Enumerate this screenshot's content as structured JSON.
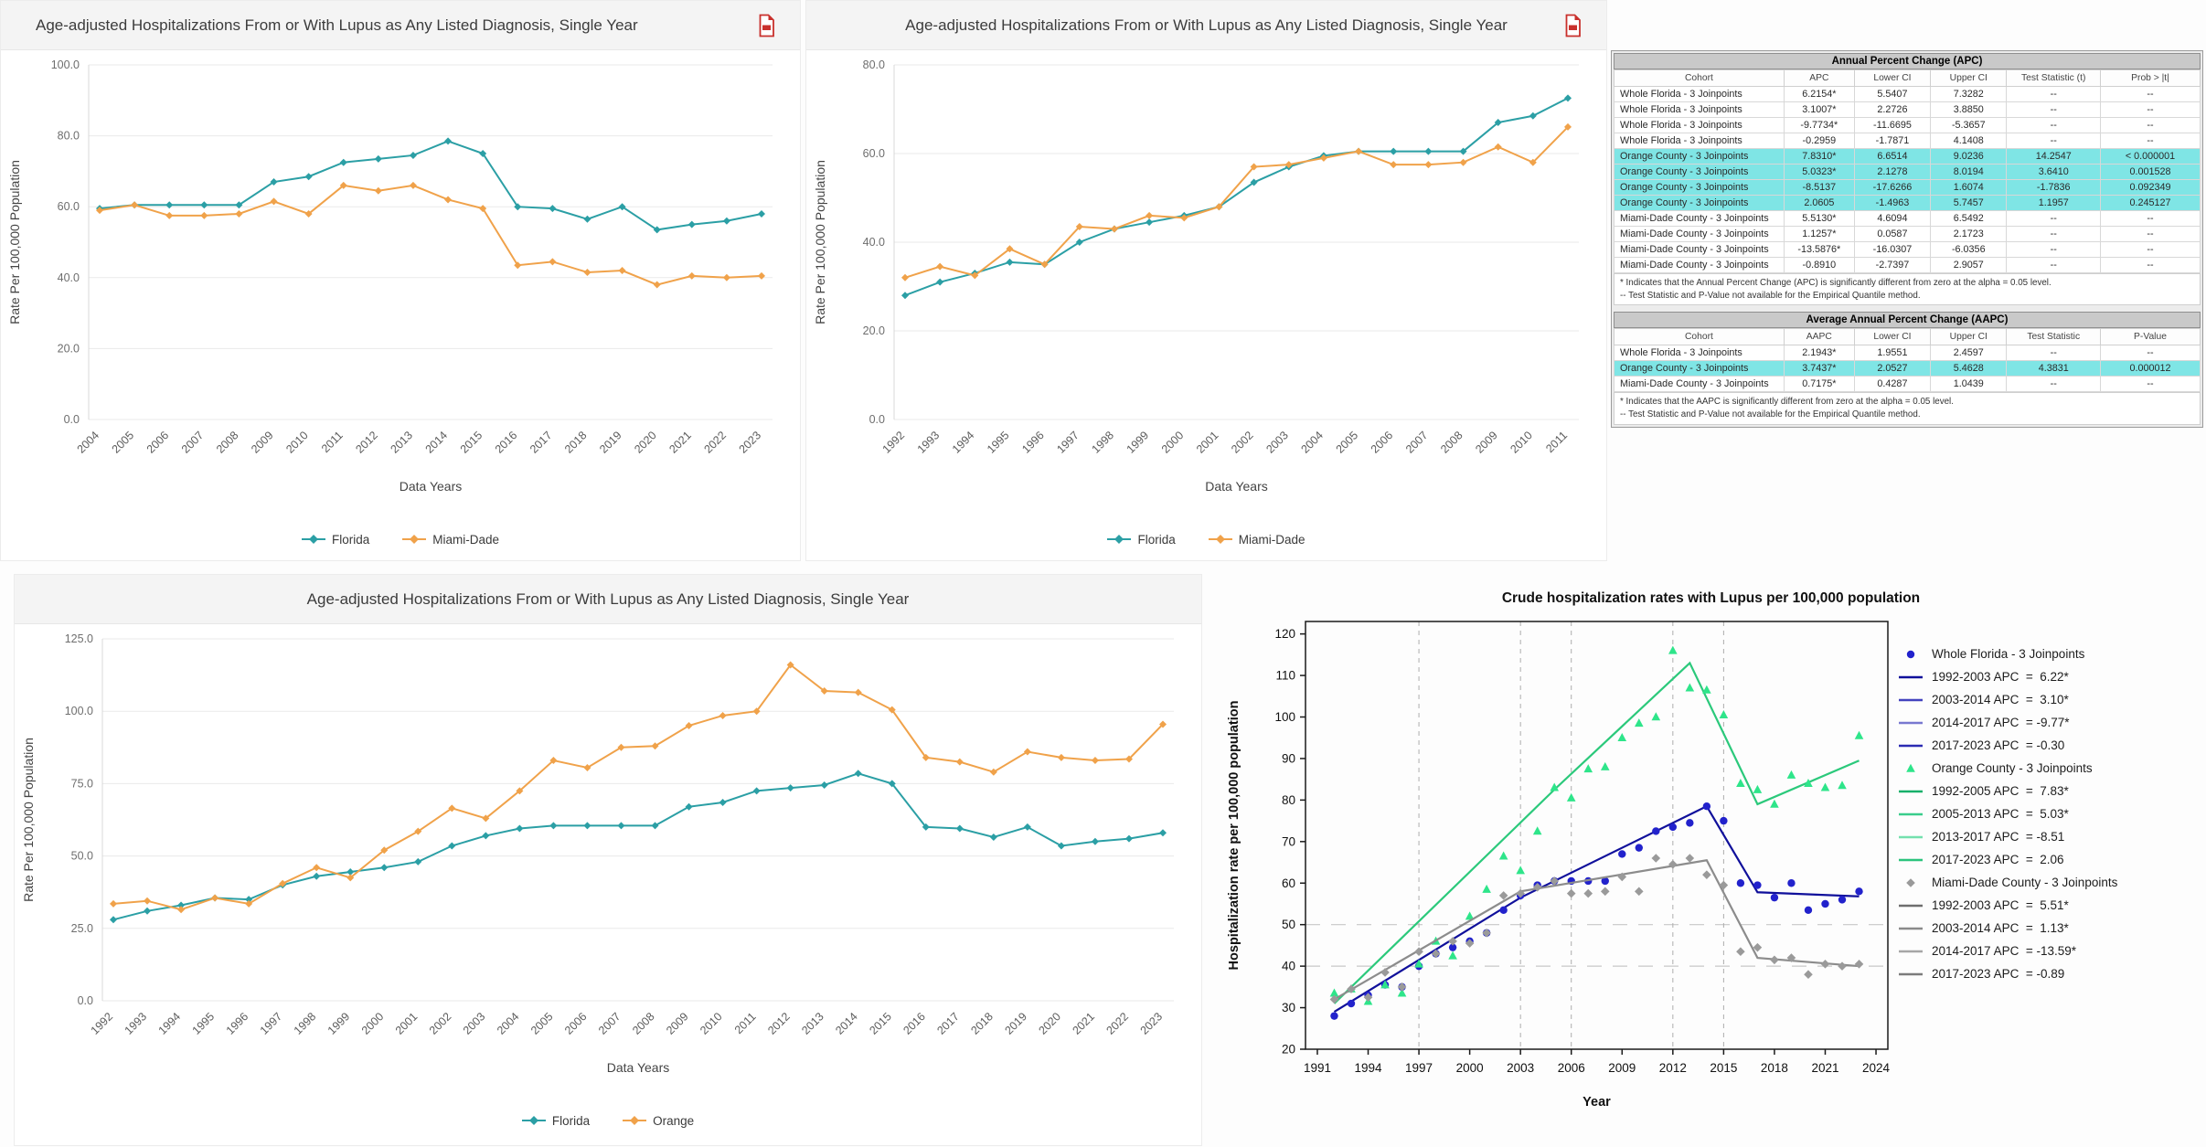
{
  "colors": {
    "teal": "#2B9FA5",
    "orange": "#F0A24A",
    "blue_marker": "#2222CC",
    "blue_line": "#10109B",
    "green_marker": "#2EE58A",
    "green_line": "#2BC97B",
    "gray_marker": "#9A9A9A",
    "gray_line": "#8C8C8C",
    "highlight": "#7FE5E5",
    "pdf_red": "#C9302C"
  },
  "icons": {
    "pdf_export": "file-pdf-icon"
  },
  "chart_data": [
    {
      "id": "age-adjusted-2004-2023-florida-miamidade",
      "type": "line",
      "title": "Age-adjusted Hospitalizations From or With Lupus as Any Listed Diagnosis, Single Year",
      "xlabel": "Data Years",
      "ylabel": "Rate Per 100,000 Population",
      "ylim": [
        0,
        100
      ],
      "yticks": [
        0,
        20,
        40,
        60,
        80,
        100
      ],
      "grid": "horizontal",
      "legend_position": "bottom",
      "categories": [
        "2004",
        "2005",
        "2006",
        "2007",
        "2008",
        "2009",
        "2010",
        "2011",
        "2012",
        "2013",
        "2014",
        "2015",
        "2016",
        "2017",
        "2018",
        "2019",
        "2020",
        "2021",
        "2022",
        "2023"
      ],
      "series": [
        {
          "name": "Florida",
          "color": "#2B9FA5",
          "values": [
            59.5,
            60.5,
            60.5,
            60.5,
            60.5,
            67,
            68.5,
            72.5,
            73.5,
            74.5,
            78.5,
            75,
            60,
            59.5,
            56.5,
            60,
            53.5,
            55,
            56,
            58
          ]
        },
        {
          "name": "Miami-Dade",
          "color": "#F0A24A",
          "values": [
            59,
            60.5,
            57.5,
            57.5,
            58,
            61.5,
            58,
            66,
            64.5,
            66,
            62,
            59.5,
            43.5,
            44.5,
            41.5,
            42,
            38,
            40.5,
            40,
            40.5
          ]
        }
      ]
    },
    {
      "id": "age-adjusted-1992-2011-florida-miamidade",
      "type": "line",
      "title": "Age-adjusted Hospitalizations From or With Lupus as Any Listed Diagnosis, Single Year",
      "xlabel": "Data Years",
      "ylabel": "Rate Per 100,000 Population",
      "ylim": [
        0,
        80
      ],
      "yticks": [
        0,
        20,
        40,
        60,
        80
      ],
      "grid": "horizontal",
      "legend_position": "bottom",
      "categories": [
        "1992",
        "1993",
        "1994",
        "1995",
        "1996",
        "1997",
        "1998",
        "1999",
        "2000",
        "2001",
        "2002",
        "2003",
        "2004",
        "2005",
        "2006",
        "2007",
        "2008",
        "2009",
        "2010",
        "2011"
      ],
      "series": [
        {
          "name": "Florida",
          "color": "#2B9FA5",
          "values": [
            28,
            31,
            33,
            35.5,
            35,
            40,
            43,
            44.5,
            46,
            48,
            53.5,
            57,
            59.5,
            60.5,
            60.5,
            60.5,
            60.5,
            67,
            68.5,
            72.5
          ]
        },
        {
          "name": "Miami-Dade",
          "color": "#F0A24A",
          "values": [
            32,
            34.5,
            32.5,
            38.5,
            35,
            43.5,
            43,
            46,
            45.5,
            48,
            57,
            57.5,
            59,
            60.5,
            57.5,
            57.5,
            58,
            61.5,
            58,
            66
          ]
        }
      ]
    },
    {
      "id": "age-adjusted-1992-2023-florida-orange",
      "type": "line",
      "title": "Age-adjusted Hospitalizations From or With Lupus as Any Listed Diagnosis, Single Year",
      "xlabel": "Data Years",
      "ylabel": "Rate Per 100,000 Population",
      "ylim": [
        0,
        125
      ],
      "yticks": [
        0,
        25,
        50,
        75,
        100,
        125
      ],
      "grid": "horizontal",
      "legend_position": "bottom",
      "categories": [
        "1992",
        "1993",
        "1994",
        "1995",
        "1996",
        "1997",
        "1998",
        "1999",
        "2000",
        "2001",
        "2002",
        "2003",
        "2004",
        "2005",
        "2006",
        "2007",
        "2008",
        "2009",
        "2010",
        "2011",
        "2012",
        "2013",
        "2014",
        "2015",
        "2016",
        "2017",
        "2018",
        "2019",
        "2020",
        "2021",
        "2022",
        "2023"
      ],
      "series": [
        {
          "name": "Florida",
          "color": "#2B9FA5",
          "values": [
            28,
            31,
            33,
            35.5,
            35,
            40,
            43,
            44.5,
            46,
            48,
            53.5,
            57,
            59.5,
            60.5,
            60.5,
            60.5,
            60.5,
            67,
            68.5,
            72.5,
            73.5,
            74.5,
            78.5,
            75,
            60,
            59.5,
            56.5,
            60,
            53.5,
            55,
            56,
            58
          ]
        },
        {
          "name": "Orange",
          "color": "#F0A24A",
          "values": [
            33.5,
            34.5,
            31.5,
            35.5,
            33.5,
            40.5,
            46,
            42.5,
            52,
            58.5,
            66.5,
            63,
            72.5,
            83,
            80.5,
            87.5,
            88,
            95,
            98.5,
            100,
            116,
            107,
            106.5,
            100.5,
            84,
            82.5,
            79,
            86,
            84,
            83,
            83.5,
            95.5
          ]
        }
      ]
    },
    {
      "id": "joinpoint-crude-rates",
      "type": "scatter",
      "title": "Crude hospitalization rates with Lupus per 100,000 population",
      "xlabel": "Year",
      "ylabel": "Hospitalization rate per 100,000 population",
      "xlim": [
        1990.3,
        2024.7
      ],
      "ylim": [
        20,
        123
      ],
      "xticks": [
        1991,
        1994,
        1997,
        2000,
        2003,
        2006,
        2009,
        2012,
        2015,
        2018,
        2021,
        2024
      ],
      "yticks": [
        20,
        30,
        40,
        50,
        60,
        70,
        80,
        90,
        100,
        110,
        120
      ],
      "href_lines": [
        40,
        50
      ],
      "vref_lines": [
        1997,
        2003,
        2006,
        2012,
        2015
      ],
      "grid": "dashed-reference-lines",
      "legend_position": "right",
      "years": [
        1992,
        1993,
        1994,
        1995,
        1996,
        1997,
        1998,
        1999,
        2000,
        2001,
        2002,
        2003,
        2004,
        2005,
        2006,
        2007,
        2008,
        2009,
        2010,
        2011,
        2012,
        2013,
        2014,
        2015,
        2016,
        2017,
        2018,
        2019,
        2020,
        2021,
        2022,
        2023
      ],
      "cohorts": [
        {
          "name": "Whole Florida - 3 Joinpoints",
          "marker": "circle",
          "marker_color": "#2222CC",
          "line_color": "#10109B",
          "scatter": [
            28,
            31,
            33,
            35.5,
            35,
            40,
            43,
            44.5,
            46,
            48,
            53.5,
            57,
            59.5,
            60.5,
            60.5,
            60.5,
            60.5,
            67,
            68.5,
            72.5,
            73.5,
            74.5,
            78.5,
            75,
            60,
            59.5,
            56.5,
            60,
            53.5,
            55,
            56,
            58
          ],
          "fit": [
            [
              1992,
              29
            ],
            [
              2003,
              56.5
            ],
            [
              2014,
              78.5
            ],
            [
              2017,
              57.8
            ],
            [
              2023,
              56.8
            ]
          ]
        },
        {
          "name": "Orange County - 3 Joinpoints",
          "marker": "triangle",
          "marker_color": "#2EE58A",
          "line_color": "#2BC97B",
          "scatter": [
            33.5,
            34.5,
            31.5,
            35.5,
            33.5,
            40.5,
            46,
            42.5,
            52,
            58.5,
            66.5,
            63,
            72.5,
            83,
            80.5,
            87.5,
            88,
            95,
            98.5,
            100,
            116,
            107,
            106.5,
            100.5,
            84,
            82.5,
            79,
            86,
            84,
            83,
            83.5,
            95.5
          ],
          "fit": [
            [
              1992,
              31
            ],
            [
              2005,
              82.5
            ],
            [
              2013,
              113
            ],
            [
              2017,
              79
            ],
            [
              2023,
              89.5
            ]
          ]
        },
        {
          "name": "Miami-Dade County - 3 Joinpoints",
          "marker": "diamond",
          "marker_color": "#9A9A9A",
          "line_color": "#8C8C8C",
          "scatter": [
            32,
            34.5,
            32.5,
            38.5,
            35,
            43.5,
            43,
            46,
            45.5,
            48,
            57,
            57.5,
            59,
            60.5,
            57.5,
            57.5,
            58,
            61.5,
            58,
            66,
            64.5,
            66,
            62,
            59.5,
            43.5,
            44.5,
            41.5,
            42,
            38,
            40.5,
            40,
            40.5
          ],
          "fit": [
            [
              1992,
              32
            ],
            [
              2003,
              58
            ],
            [
              2014,
              65.5
            ],
            [
              2017,
              42
            ],
            [
              2023,
              40
            ]
          ]
        }
      ],
      "legend": [
        {
          "shape": "circle",
          "color": "#2222CC",
          "label": "Whole Florida - 3 Joinpoints"
        },
        {
          "shape": "line",
          "color": "#10109B",
          "label": "1992-2003 APC  =  6.22*"
        },
        {
          "shape": "line",
          "color": "#4343BE",
          "label": "2003-2014 APC  =  3.10*"
        },
        {
          "shape": "line",
          "color": "#7878D0",
          "label": "2014-2017 APC  = -9.77*"
        },
        {
          "shape": "line",
          "color": "#2B2BB2",
          "label": "2017-2023 APC  = -0.30"
        },
        {
          "shape": "triangle",
          "color": "#2EE58A",
          "label": "Orange County - 3 Joinpoints"
        },
        {
          "shape": "line",
          "color": "#17B06A",
          "label": "1992-2005 APC  =  7.83*"
        },
        {
          "shape": "line",
          "color": "#3ACD8B",
          "label": "2005-2013 APC  =  5.03*"
        },
        {
          "shape": "line",
          "color": "#74E0AE",
          "label": "2013-2017 APC  = -8.51"
        },
        {
          "shape": "line",
          "color": "#2BC47D",
          "label": "2017-2023 APC  =  2.06"
        },
        {
          "shape": "diamond",
          "color": "#9A9A9A",
          "label": "Miami-Dade County - 3 Joinpoints"
        },
        {
          "shape": "line",
          "color": "#6E6E6E",
          "label": "1992-2003 APC  =  5.51*"
        },
        {
          "shape": "line",
          "color": "#8A8A8A",
          "label": "2003-2014 APC  =  1.13*"
        },
        {
          "shape": "line",
          "color": "#A6A6A6",
          "label": "2014-2017 APC  = -13.59*"
        },
        {
          "shape": "line",
          "color": "#7C7C7C",
          "label": "2017-2023 APC  = -0.89"
        }
      ]
    }
  ],
  "apc_table": {
    "title": "Annual Percent Change (APC)",
    "columns": [
      "Cohort",
      "APC",
      "Lower CI",
      "Upper CI",
      "Test Statistic (t)",
      "Prob > |t|"
    ],
    "rows": [
      {
        "cells": [
          "Whole Florida - 3 Joinpoints",
          "6.2154*",
          "5.5407",
          "7.3282",
          "--",
          "--"
        ],
        "highlight": false
      },
      {
        "cells": [
          "Whole Florida - 3 Joinpoints",
          "3.1007*",
          "2.2726",
          "3.8850",
          "--",
          "--"
        ],
        "highlight": false
      },
      {
        "cells": [
          "Whole Florida - 3 Joinpoints",
          "-9.7734*",
          "-11.6695",
          "-5.3657",
          "--",
          "--"
        ],
        "highlight": false
      },
      {
        "cells": [
          "Whole Florida - 3 Joinpoints",
          "-0.2959",
          "-1.7871",
          "4.1408",
          "--",
          "--"
        ],
        "highlight": false
      },
      {
        "cells": [
          "Orange County - 3 Joinpoints",
          "7.8310*",
          "6.6514",
          "9.0236",
          "14.2547",
          "< 0.000001"
        ],
        "highlight": true
      },
      {
        "cells": [
          "Orange County - 3 Joinpoints",
          "5.0323*",
          "2.1278",
          "8.0194",
          "3.6410",
          "0.001528"
        ],
        "highlight": true
      },
      {
        "cells": [
          "Orange County - 3 Joinpoints",
          "-8.5137",
          "-17.6266",
          "1.6074",
          "-1.7836",
          "0.092349"
        ],
        "highlight": true
      },
      {
        "cells": [
          "Orange County - 3 Joinpoints",
          "2.0605",
          "-1.4963",
          "5.7457",
          "1.1957",
          "0.245127"
        ],
        "highlight": true
      },
      {
        "cells": [
          "Miami-Dade County - 3 Joinpoints",
          "5.5130*",
          "4.6094",
          "6.5492",
          "--",
          "--"
        ],
        "highlight": false
      },
      {
        "cells": [
          "Miami-Dade County - 3 Joinpoints",
          "1.1257*",
          "0.0587",
          "2.1723",
          "--",
          "--"
        ],
        "highlight": false
      },
      {
        "cells": [
          "Miami-Dade County - 3 Joinpoints",
          "-13.5876*",
          "-16.0307",
          "-6.0356",
          "--",
          "--"
        ],
        "highlight": false
      },
      {
        "cells": [
          "Miami-Dade County - 3 Joinpoints",
          "-0.8910",
          "-2.7397",
          "2.9057",
          "--",
          "--"
        ],
        "highlight": false
      }
    ],
    "footnotes": [
      "* Indicates that the Annual Percent Change (APC) is significantly different from zero at the alpha = 0.05 level.",
      "-- Test Statistic and P-Value not available for the Empirical Quantile method."
    ]
  },
  "aapc_table": {
    "title": "Average Annual Percent Change (AAPC)",
    "columns": [
      "Cohort",
      "AAPC",
      "Lower CI",
      "Upper CI",
      "Test Statistic",
      "P-Value"
    ],
    "rows": [
      {
        "cells": [
          "Whole Florida - 3 Joinpoints",
          "2.1943*",
          "1.9551",
          "2.4597",
          "--",
          "--"
        ],
        "highlight": false
      },
      {
        "cells": [
          "Orange County - 3 Joinpoints",
          "3.7437*",
          "2.0527",
          "5.4628",
          "4.3831",
          "0.000012"
        ],
        "highlight": true
      },
      {
        "cells": [
          "Miami-Dade County - 3 Joinpoints",
          "0.7175*",
          "0.4287",
          "1.0439",
          "--",
          "--"
        ],
        "highlight": false
      }
    ],
    "footnotes": [
      "* Indicates that the AAPC is significantly different from zero at the alpha = 0.05 level.",
      "-- Test Statistic and P-Value not available for the Empirical Quantile method."
    ]
  }
}
